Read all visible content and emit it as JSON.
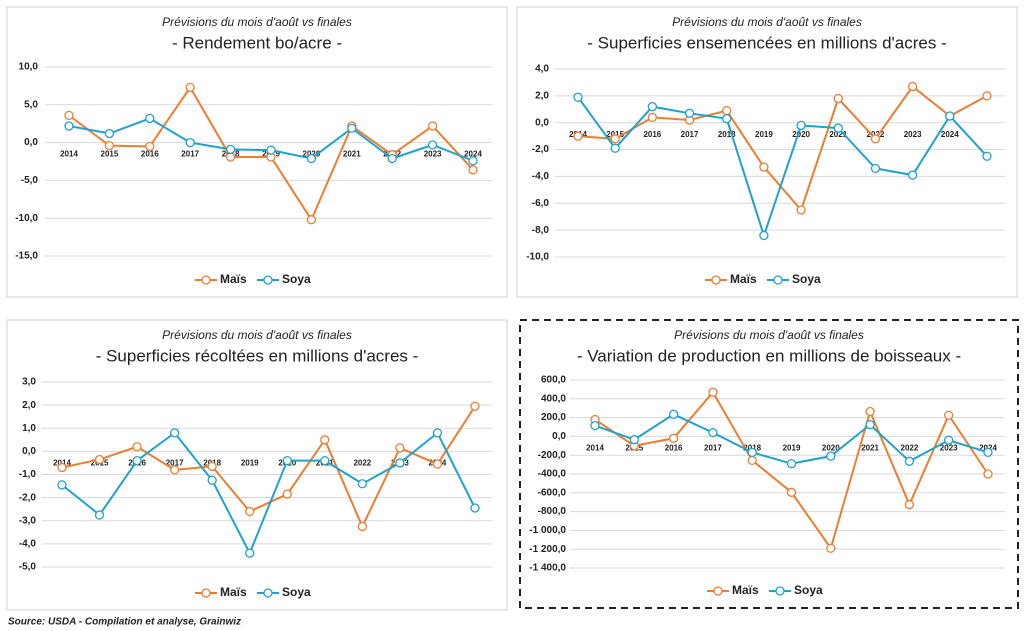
{
  "chart_data": [
    {
      "type": "line",
      "subtitle": "Prévisions du mois d'août vs finales",
      "title": "- Rendement bo/acre -",
      "categories": [
        "2014",
        "2015",
        "2016",
        "2017",
        "2018",
        "2019",
        "2020",
        "2021",
        "2022",
        "2023",
        "2024"
      ],
      "series": [
        {
          "name": "Maïs",
          "color": "#ed7d31",
          "values": [
            3.6,
            -0.4,
            -0.5,
            7.3,
            -1.9,
            -1.9,
            -10.2,
            2.2,
            -1.6,
            2.2,
            -3.6
          ]
        },
        {
          "name": "Soya",
          "color": "#1fa2cc",
          "values": [
            2.2,
            1.2,
            3.2,
            0,
            -0.9,
            -1.0,
            -2.1,
            1.9,
            -2.1,
            -0.3,
            -2.4
          ]
        }
      ],
      "ylim": [
        -15,
        10
      ],
      "yticks": [
        {
          "value": 10,
          "label": "10,0"
        },
        {
          "value": 5,
          "label": "5,0"
        },
        {
          "value": 0,
          "label": "0,0"
        },
        {
          "value": -5,
          "label": "-5,0"
        },
        {
          "value": -10,
          "label": "-10,0"
        },
        {
          "value": -15,
          "label": "-15,0"
        }
      ],
      "grid": true,
      "legend": "bottom"
    },
    {
      "type": "line",
      "subtitle": "Prévisions du mois d'août vs finales",
      "title": "- Superficies ensemencées en millions d'acres -",
      "categories": [
        "2014",
        "2015",
        "2016",
        "2017",
        "2018",
        "2019",
        "2020",
        "2021",
        "2022",
        "2023",
        "2024",
        null
      ],
      "series": [
        {
          "name": "Maïs",
          "color": "#ed7d31",
          "values": [
            -1.0,
            -1.2,
            0.4,
            0.2,
            0.9,
            -3.3,
            -6.5,
            1.8,
            -1.2,
            2.7,
            0.5,
            2.0
          ]
        },
        {
          "name": "Soya",
          "color": "#1fa2cc",
          "values": [
            1.9,
            -1.9,
            1.2,
            0.7,
            0.3,
            -8.4,
            -0.2,
            -0.4,
            -3.4,
            -3.9,
            0.5,
            -2.5
          ]
        }
      ],
      "ylim": [
        -10,
        4
      ],
      "yticks": [
        {
          "value": 4,
          "label": "4,0"
        },
        {
          "value": 2,
          "label": "2,0"
        },
        {
          "value": 0,
          "label": "0,0"
        },
        {
          "value": -2,
          "label": "-2,0"
        },
        {
          "value": -4,
          "label": "-4,0"
        },
        {
          "value": -6,
          "label": "-6,0"
        },
        {
          "value": -8,
          "label": "-8,0"
        },
        {
          "value": -10,
          "label": "-10,0"
        }
      ],
      "grid": true,
      "legend": "bottom"
    },
    {
      "type": "line",
      "subtitle": "Prévisions du mois d'août vs finales",
      "title": "- Superficies récoltées en millions d'acres -",
      "categories": [
        "2014",
        "2015",
        "2016",
        "2017",
        "2018",
        "2019",
        "2020",
        "2021",
        "2022",
        "2023",
        "2024",
        null
      ],
      "series": [
        {
          "name": "Maïs",
          "color": "#ed7d31",
          "values": [
            -0.7,
            -0.35,
            0.2,
            -0.8,
            -0.65,
            -2.6,
            -1.85,
            0.5,
            -3.25,
            0.15,
            -0.55,
            1.95
          ]
        },
        {
          "name": "Soya",
          "color": "#1fa2cc",
          "values": [
            -1.45,
            -2.75,
            -0.4,
            0.8,
            -1.25,
            -4.4,
            -0.4,
            -0.4,
            -1.4,
            -0.5,
            0.8,
            -2.45
          ]
        }
      ],
      "ylim": [
        -5,
        3
      ],
      "yticks": [
        {
          "value": 3,
          "label": "3,0"
        },
        {
          "value": 2,
          "label": "2,0"
        },
        {
          "value": 1,
          "label": "1,0"
        },
        {
          "value": 0,
          "label": "0,0"
        },
        {
          "value": -1,
          "label": "-1,0"
        },
        {
          "value": -2,
          "label": "-2,0"
        },
        {
          "value": -3,
          "label": "-3,0"
        },
        {
          "value": -4,
          "label": "-4,0"
        },
        {
          "value": -5,
          "label": "-5,0"
        }
      ],
      "grid": true,
      "legend": "bottom"
    },
    {
      "type": "line",
      "subtitle": "Prévisions du mois d'août vs finales",
      "title": "- Variation de production en millions de boisseaux -",
      "categories": [
        "2014",
        "2015",
        "2016",
        "2017",
        "2018",
        "2019",
        "2020",
        "2021",
        "2022",
        "2023",
        "2024"
      ],
      "series": [
        {
          "name": "Maïs",
          "color": "#ed7d31",
          "values": [
            180,
            -100,
            -20,
            470,
            -255,
            -595,
            -1190,
            265,
            -725,
            225,
            -400
          ]
        },
        {
          "name": "Soya",
          "color": "#1fa2cc",
          "values": [
            115,
            -35,
            235,
            40,
            -170,
            -290,
            -210,
            125,
            -265,
            -40,
            -170
          ]
        }
      ],
      "ylim": [
        -1400,
        600
      ],
      "yticks": [
        {
          "value": 600,
          "label": "600,0"
        },
        {
          "value": 400,
          "label": "400,0"
        },
        {
          "value": 200,
          "label": "200,0"
        },
        {
          "value": 0,
          "label": "0,0"
        },
        {
          "value": -200,
          "label": "-200,0"
        },
        {
          "value": -400,
          "label": "-400,0"
        },
        {
          "value": -600,
          "label": "-600,0"
        },
        {
          "value": -800,
          "label": "-800,0"
        },
        {
          "value": -1000,
          "label": "-1 000,0"
        },
        {
          "value": -1200,
          "label": "-1 200,0"
        },
        {
          "value": -1400,
          "label": "-1 400,0"
        }
      ],
      "grid": true,
      "legend": "bottom"
    }
  ],
  "source": "Source: USDA - Compilation et analyse, Grainwiz"
}
